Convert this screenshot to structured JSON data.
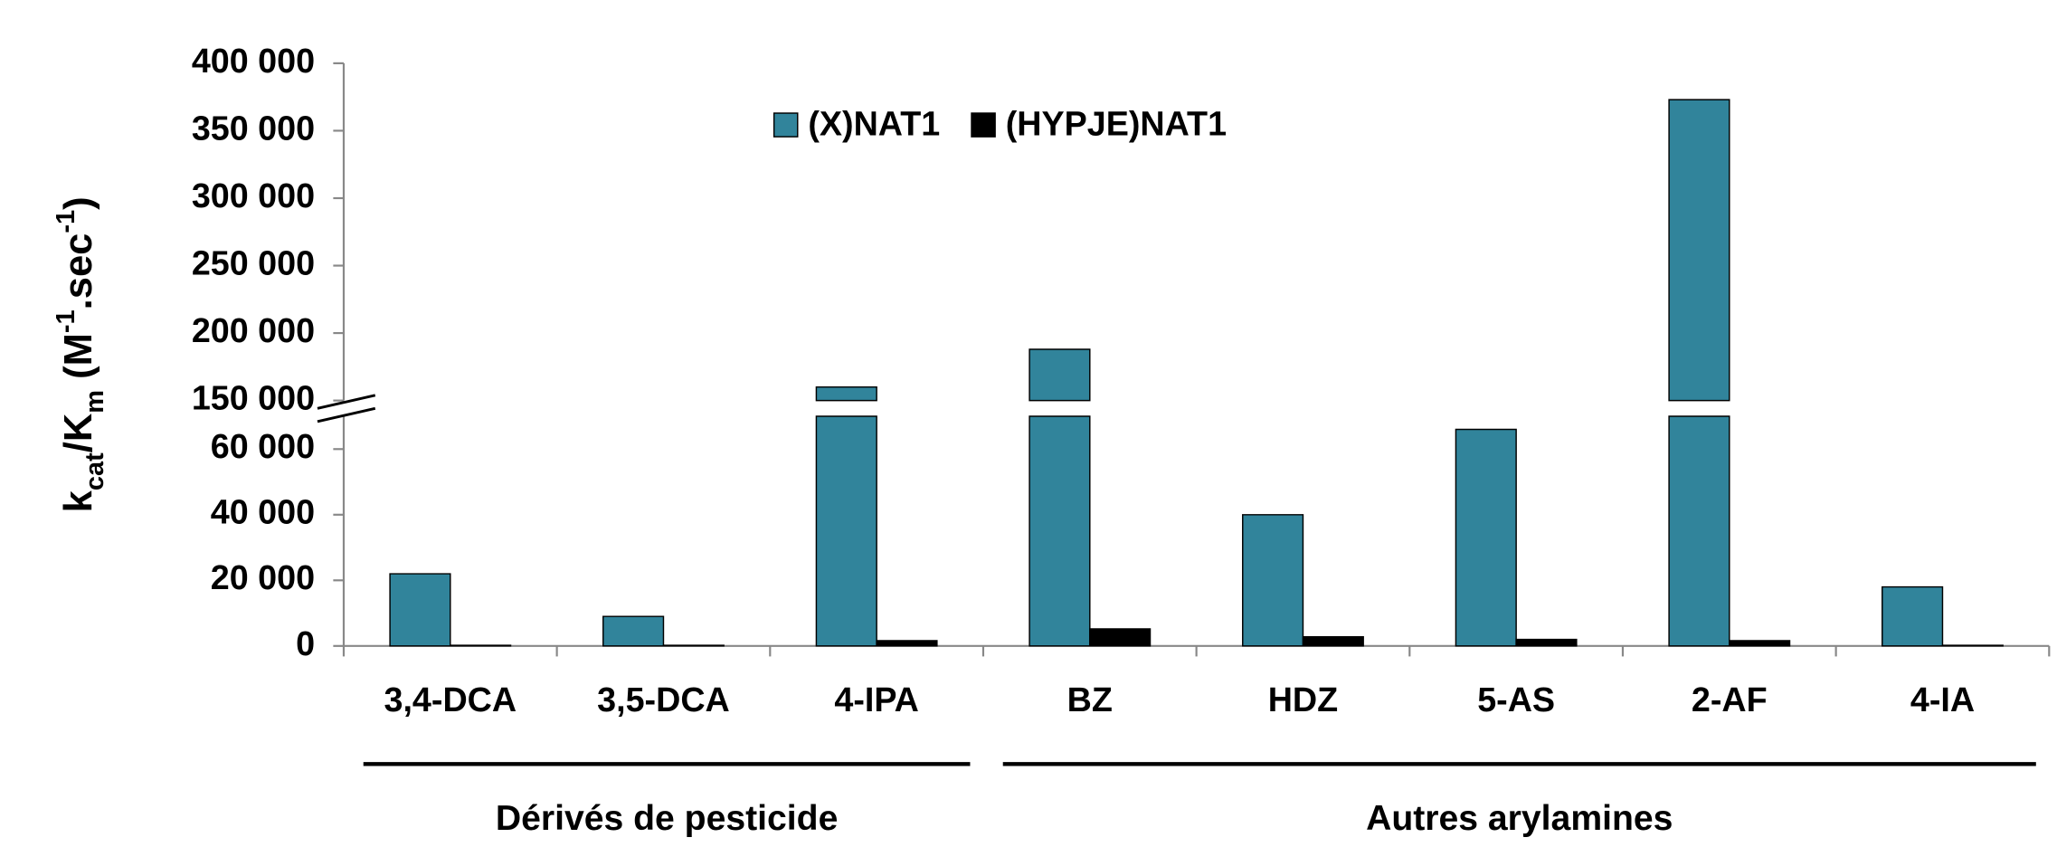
{
  "chart_data": {
    "type": "bar",
    "y_label_parts": [
      {
        "text": "k"
      },
      {
        "text": "cat",
        "shift": "sub"
      },
      {
        "text": "/K"
      },
      {
        "text": "m",
        "shift": "sub"
      },
      {
        "text": " (M"
      },
      {
        "text": "-1",
        "shift": "super"
      },
      {
        "text": ".sec"
      },
      {
        "text": "-1",
        "shift": "super"
      },
      {
        "text": ")"
      }
    ],
    "categories": [
      "3,4-DCA",
      "3,5-DCA",
      "4-IPA",
      "BZ",
      "HDZ",
      "5-AS",
      "2-AF",
      "4-IA"
    ],
    "series": [
      {
        "name": "(X)NAT1",
        "color": "#31849b",
        "values": [
          22000,
          9000,
          160000,
          188000,
          40000,
          66000,
          373000,
          18000
        ]
      },
      {
        "name": "(HYPJE)NAT1",
        "color": "#000000",
        "values": [
          200,
          200,
          1600,
          5200,
          2800,
          2000,
          1600,
          200
        ]
      }
    ],
    "ylim": [
      0,
      70000
    ],
    "yticks": [
      0,
      {
        "value": 20000,
        "label": "20 000"
      },
      {
        "value": 40000,
        "label": "40 000"
      },
      {
        "value": 60000,
        "label": "60 000"
      }
    ],
    "y_upper_lim": [
      150000,
      400000
    ],
    "y_upper_ticks": [
      {
        "value": 150000,
        "label": "150 000"
      },
      {
        "value": 200000,
        "label": "200 000"
      },
      {
        "value": 250000,
        "label": "250 000"
      },
      {
        "value": 300000,
        "label": "300 000"
      },
      {
        "value": 350000,
        "label": "350 000"
      },
      {
        "value": 400000,
        "label": "400 000"
      }
    ],
    "axis_break": true,
    "groups": [
      {
        "label": "Dérivés de pesticide",
        "span": [
          "3,4-DCA",
          "4-IPA"
        ]
      },
      {
        "label": "Autres arylamines",
        "span": [
          "BZ",
          "4-IA"
        ]
      }
    ],
    "legend": "top"
  }
}
